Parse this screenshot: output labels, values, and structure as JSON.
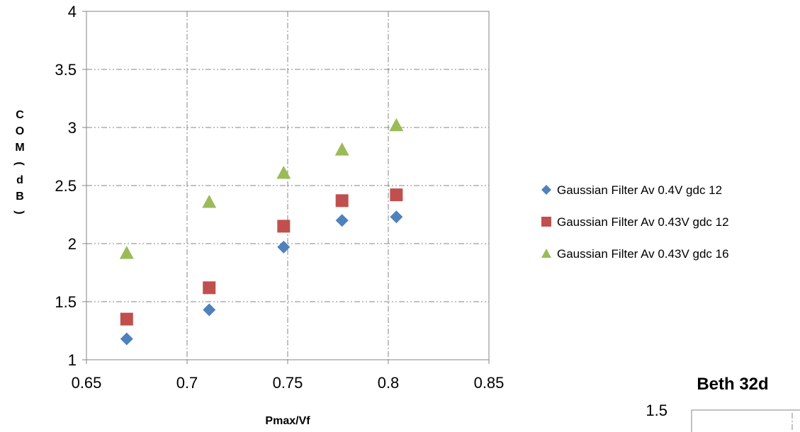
{
  "chart_data": [
    {
      "type": "scatter",
      "title": "",
      "xlabel": "Pmax/Vf",
      "ylabel": "COM(dB)",
      "xlim": [
        0.65,
        0.85
      ],
      "ylim": [
        1,
        4
      ],
      "x_ticks": [
        0.65,
        0.7,
        0.75,
        0.8,
        0.85
      ],
      "y_ticks": [
        1,
        1.5,
        2,
        2.5,
        3,
        3.5,
        4
      ],
      "x_tick_labels": [
        "0.65",
        "0.7",
        "0.75",
        "0.8",
        "0.85"
      ],
      "y_tick_labels": [
        "1",
        "1.5",
        "2",
        "2.5",
        "3",
        "3.5",
        "4"
      ],
      "grid": true,
      "legend_position": "right",
      "series": [
        {
          "name": "Gaussian Filter Av 0.4V gdc 12",
          "marker": "diamond",
          "color": "#4F81BD",
          "x": [
            0.67,
            0.711,
            0.748,
            0.777,
            0.804
          ],
          "y": [
            1.18,
            1.43,
            1.97,
            2.2,
            2.23
          ]
        },
        {
          "name": "Gaussian Filter Av 0.43V gdc 12",
          "marker": "square",
          "color": "#C0504D",
          "x": [
            0.67,
            0.711,
            0.748,
            0.777,
            0.804
          ],
          "y": [
            1.35,
            1.62,
            2.15,
            2.37,
            2.42
          ]
        },
        {
          "name": "Gaussian Filter Av 0.43V gdc 16",
          "marker": "triangle",
          "color": "#9BBB59",
          "x": [
            0.67,
            0.711,
            0.748,
            0.777,
            0.804
          ],
          "y": [
            1.92,
            2.36,
            2.61,
            2.81,
            3.02
          ]
        }
      ]
    },
    {
      "type": "scatter",
      "title": "Beth 32d",
      "y_tick_labels": [
        "1.5"
      ],
      "partial": true,
      "series": []
    }
  ]
}
